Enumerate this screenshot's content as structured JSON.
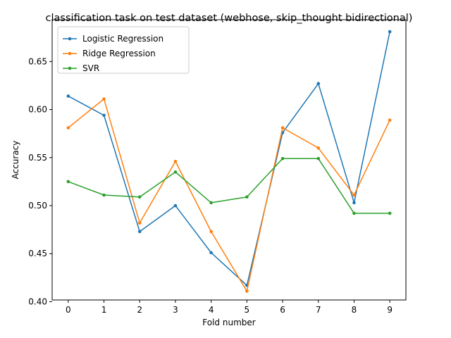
{
  "chart_data": {
    "type": "line",
    "title": "classification task on test dataset (webhose, skip_thought bidirectional)",
    "xlabel": "Fold number",
    "ylabel": "Accuracy",
    "x": [
      0,
      1,
      2,
      3,
      4,
      5,
      6,
      7,
      8,
      9
    ],
    "xlim": [
      -0.45,
      9.45
    ],
    "ylim": [
      0.4018,
      0.6935
    ],
    "yticks": [
      "0.40",
      "0.45",
      "0.50",
      "0.55",
      "0.60",
      "0.65"
    ],
    "grid": false,
    "legend_position": "upper left",
    "series": [
      {
        "name": "Logistic Regression",
        "color": "#1f77b4",
        "values": [
          0.614,
          0.594,
          0.473,
          0.5,
          0.451,
          0.417,
          0.576,
          0.627,
          0.503,
          0.681
        ]
      },
      {
        "name": "Ridge Regression",
        "color": "#ff7f0e",
        "values": [
          0.581,
          0.611,
          0.482,
          0.546,
          0.473,
          0.411,
          0.581,
          0.56,
          0.511,
          0.589
        ]
      },
      {
        "name": "SVR",
        "color": "#2ca02c",
        "values": [
          0.525,
          0.511,
          0.509,
          0.535,
          0.503,
          0.509,
          0.549,
          0.549,
          0.492,
          0.492
        ]
      }
    ]
  }
}
